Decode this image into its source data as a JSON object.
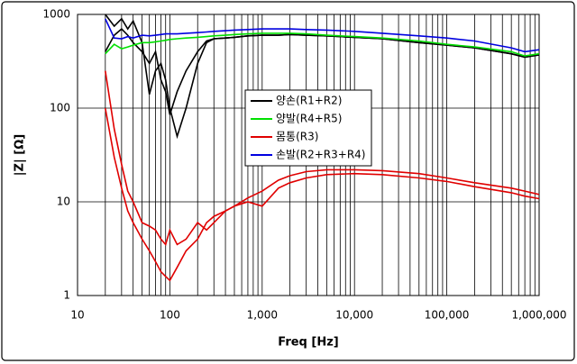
{
  "chart_data": {
    "type": "line",
    "x_label": "Freq [Hz]",
    "y_label": "|Z| [Ω]",
    "xlog": true,
    "ylog": true,
    "grid": true,
    "legend_position": "center",
    "xlim": [
      10,
      1000000
    ],
    "ylim": [
      1,
      1000
    ],
    "xticks": [
      10,
      100,
      {
        "value": 1000,
        "label": "1,000"
      },
      {
        "value": 10000,
        "label": "10,000"
      },
      {
        "value": 100000,
        "label": "100,000"
      },
      {
        "value": 1000000,
        "label": "1,000,000"
      }
    ],
    "xminorticks": [
      20,
      30,
      40,
      50,
      60,
      70,
      80,
      90,
      200,
      300,
      400,
      500,
      600,
      700,
      800,
      900,
      2000,
      3000,
      4000,
      5000,
      6000,
      7000,
      8000,
      9000,
      20000,
      30000,
      40000,
      50000,
      60000,
      70000,
      80000,
      90000,
      200000,
      300000,
      400000,
      500000,
      600000,
      700000,
      800000,
      900000
    ],
    "yticks": [
      1,
      10,
      100,
      1000
    ],
    "x": [
      20,
      25,
      30,
      35,
      40,
      50,
      60,
      70,
      80,
      90,
      100,
      120,
      150,
      200,
      250,
      300,
      400,
      500,
      700,
      1000,
      1500,
      2000,
      3000,
      5000,
      10000,
      20000,
      50000,
      100000,
      200000,
      500000,
      700000,
      1000000
    ],
    "series": [
      {
        "name": "양손(R1+R2)",
        "color": "#000000",
        "lines": [
          [
            1000,
            750,
            900,
            700,
            850,
            500,
            140,
            250,
            300,
            200,
            100,
            50,
            100,
            300,
            500,
            550,
            560,
            570,
            590,
            600,
            600,
            610,
            600,
            590,
            570,
            550,
            500,
            470,
            440,
            380,
            350,
            370
          ],
          [
            400,
            600,
            700,
            600,
            500,
            400,
            300,
            400,
            200,
            150,
            85,
            150,
            250,
            400,
            520,
            550,
            560,
            570,
            590,
            600,
            600,
            610,
            600,
            590,
            570,
            550,
            500,
            470,
            440,
            380,
            350,
            370
          ]
        ]
      },
      {
        "name": "양발(R4+R5)",
        "color": "#00e000",
        "lines": [
          [
            380,
            480,
            430,
            450,
            470,
            500,
            500,
            510,
            520,
            530,
            540,
            550,
            560,
            570,
            580,
            590,
            600,
            610,
            620,
            630,
            630,
            630,
            620,
            600,
            580,
            560,
            520,
            480,
            450,
            400,
            360,
            380
          ]
        ]
      },
      {
        "name": "몸통(R3)",
        "color": "#e00000",
        "lines": [
          [
            250,
            60,
            25,
            13,
            10,
            6,
            5.5,
            5,
            4,
            3.5,
            5,
            3.5,
            4,
            6,
            5,
            6,
            8,
            9,
            11,
            13,
            17,
            19,
            21,
            22,
            22,
            21.5,
            20,
            18,
            16,
            14,
            13,
            12
          ],
          [
            100,
            30,
            14,
            8,
            6,
            4,
            3,
            2.3,
            1.8,
            1.6,
            1.45,
            2,
            3,
            4,
            6,
            7,
            8,
            9,
            10,
            9,
            14,
            16,
            18,
            19.5,
            20,
            19.5,
            18,
            16.5,
            14.5,
            12.5,
            11.5,
            10.8
          ]
        ]
      },
      {
        "name": "손발(R2+R3+R4)",
        "color": "#0000e0",
        "lines": [
          [
            900,
            560,
            550,
            580,
            560,
            600,
            590,
            600,
            610,
            620,
            620,
            620,
            630,
            640,
            650,
            660,
            670,
            680,
            690,
            700,
            700,
            700,
            690,
            680,
            660,
            630,
            590,
            560,
            520,
            440,
            400,
            420
          ]
        ]
      }
    ]
  }
}
